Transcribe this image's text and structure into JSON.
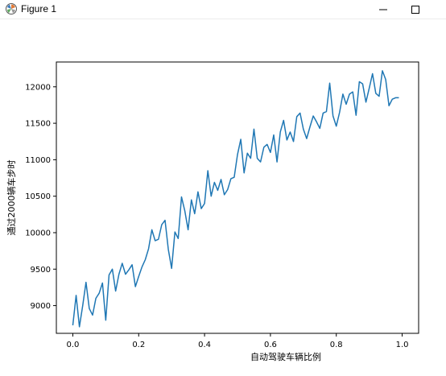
{
  "window": {
    "title": "Figure 1",
    "app_icon": "matplotlib-figure-icon",
    "controls": [
      "minimize-icon",
      "maximize-icon"
    ]
  },
  "chart_data": {
    "type": "line",
    "xlabel": "自动驾驶车辆比例",
    "ylabel": "通过2000辆车步时",
    "xlim": [
      -0.05,
      1.05
    ],
    "ylim": [
      8620,
      12340
    ],
    "xticks": [
      0.0,
      0.2,
      0.4,
      0.6,
      0.8,
      1.0
    ],
    "xtick_labels": [
      "0.0",
      "0.2",
      "0.4",
      "0.6",
      "0.8",
      "1.0"
    ],
    "yticks": [
      9000,
      9500,
      10000,
      10500,
      11000,
      11500,
      12000
    ],
    "ytick_labels": [
      "9000",
      "9500",
      "10000",
      "10500",
      "11000",
      "11500",
      "12000"
    ],
    "line_color": "#1f77b4",
    "grid": false,
    "series": [
      {
        "x": [
          0.0,
          0.01,
          0.02,
          0.03,
          0.04,
          0.05,
          0.06,
          0.07,
          0.08,
          0.09,
          0.1,
          0.11,
          0.12,
          0.13,
          0.14,
          0.15,
          0.16,
          0.17,
          0.18,
          0.19,
          0.2,
          0.21,
          0.22,
          0.23,
          0.24,
          0.25,
          0.26,
          0.27,
          0.28,
          0.29,
          0.3,
          0.31,
          0.32,
          0.33,
          0.34,
          0.35,
          0.36,
          0.37,
          0.38,
          0.39,
          0.4,
          0.41,
          0.42,
          0.43,
          0.44,
          0.45,
          0.46,
          0.47,
          0.48,
          0.49,
          0.5,
          0.51,
          0.52,
          0.53,
          0.54,
          0.55,
          0.56,
          0.57,
          0.58,
          0.59,
          0.6,
          0.61,
          0.62,
          0.63,
          0.64,
          0.65,
          0.66,
          0.67,
          0.68,
          0.69,
          0.7,
          0.71,
          0.72,
          0.73,
          0.74,
          0.75,
          0.76,
          0.77,
          0.78,
          0.79,
          0.8,
          0.81,
          0.82,
          0.83,
          0.84,
          0.85,
          0.86,
          0.87,
          0.88,
          0.89,
          0.9,
          0.91,
          0.92,
          0.93,
          0.94,
          0.95,
          0.96,
          0.97,
          0.98,
          0.99
        ],
        "values": [
          8730,
          9140,
          8710,
          9000,
          9320,
          8960,
          8870,
          9100,
          9170,
          9310,
          8800,
          9420,
          9500,
          9200,
          9430,
          9580,
          9430,
          9490,
          9560,
          9260,
          9400,
          9530,
          9630,
          9780,
          10040,
          9890,
          9910,
          10110,
          10170,
          9770,
          9510,
          10010,
          9920,
          10490,
          10300,
          10040,
          10450,
          10260,
          10560,
          10330,
          10400,
          10850,
          10500,
          10690,
          10580,
          10730,
          10520,
          10590,
          10740,
          10760,
          11070,
          11280,
          10820,
          11090,
          11020,
          11420,
          11020,
          10970,
          11170,
          11210,
          11100,
          11340,
          10970,
          11380,
          11540,
          11270,
          11380,
          11250,
          11590,
          11640,
          11420,
          11290,
          11450,
          11600,
          11520,
          11430,
          11640,
          11660,
          12050,
          11600,
          11460,
          11650,
          11900,
          11760,
          11900,
          11930,
          11610,
          12070,
          12040,
          11790,
          11980,
          12180,
          11910,
          11870,
          12220,
          12100,
          11740,
          11830,
          11850,
          11850
        ]
      }
    ]
  }
}
